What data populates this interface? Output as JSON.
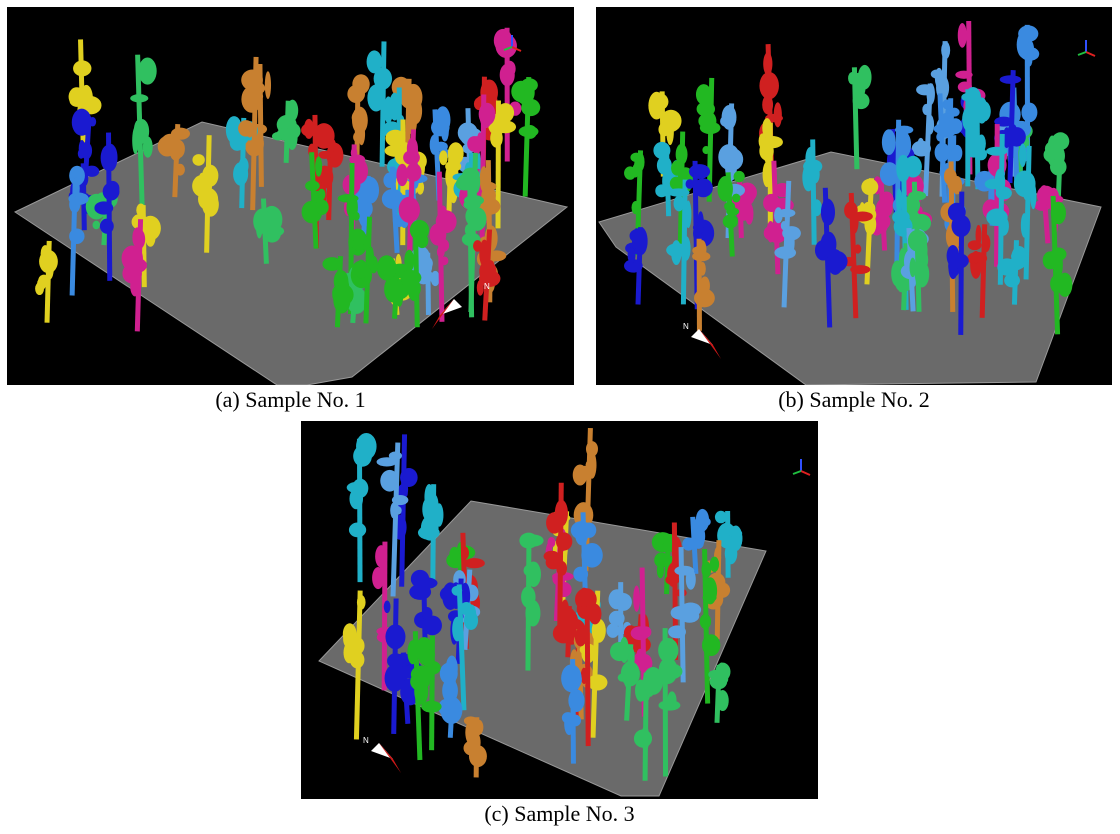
{
  "figure": {
    "panels": [
      {
        "label": "(a)",
        "caption": "Sample No. 1",
        "compass_label": "N"
      },
      {
        "label": "(b)",
        "caption": "Sample No. 2",
        "compass_label": "N"
      },
      {
        "label": "(c)",
        "caption": "Sample No. 3",
        "compass_label": "N"
      }
    ]
  }
}
